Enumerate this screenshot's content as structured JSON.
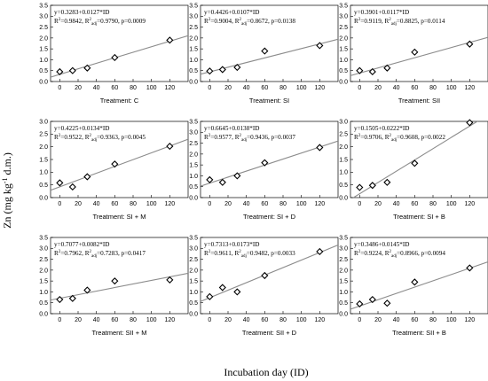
{
  "figure": {
    "ylabel_main": "Zn (mg kg",
    "ylabel_sup": "-1",
    "ylabel_tail": " d.m.)",
    "xlabel": "Incubation day (ID)"
  },
  "chart_data": [
    {
      "type": "scatter",
      "treatment": "Treatment: C",
      "eq": "y=0.3283+0.0127*ID",
      "r2": "=0.9842, R",
      "r2adj": "=0.9790, p=0.0009",
      "x": [
        0,
        14,
        30,
        60,
        120
      ],
      "y": [
        0.45,
        0.5,
        0.62,
        1.1,
        1.9
      ],
      "fit": {
        "intercept": 0.3283,
        "slope": 0.0127
      },
      "xticks": [
        "0",
        "20",
        "40",
        "60",
        "80",
        "100",
        "120"
      ],
      "yticks": [
        "0.0",
        "0.5",
        "1.0",
        "1.5",
        "2.0",
        "2.5",
        "3.0",
        "3.5"
      ],
      "xlim": [
        -10,
        140
      ],
      "ylim": [
        0,
        3.5
      ]
    },
    {
      "type": "scatter",
      "treatment": "Treatment: SI",
      "eq": "y=0.4426+0.0107*ID",
      "r2": "=0.9004, R",
      "r2adj": "=0.8672, p=0.0138",
      "x": [
        0,
        14,
        30,
        60,
        120
      ],
      "y": [
        0.48,
        0.55,
        0.65,
        1.4,
        1.65
      ],
      "fit": {
        "intercept": 0.4426,
        "slope": 0.0107
      },
      "xticks": [
        "0",
        "20",
        "40",
        "60",
        "80",
        "100",
        "120"
      ],
      "yticks": [
        "0.0",
        "0.5",
        "1.0",
        "1.5",
        "2.0",
        "2.5",
        "3.0",
        "3.5"
      ],
      "xlim": [
        -10,
        140
      ],
      "ylim": [
        0,
        3.5
      ]
    },
    {
      "type": "scatter",
      "treatment": "Treatment: SII",
      "eq": "y=0.3901+0.0117*ID",
      "r2": "=0.9119, R",
      "r2adj": "=0.8825, p=0.0114",
      "x": [
        0,
        14,
        30,
        60,
        120
      ],
      "y": [
        0.5,
        0.45,
        0.62,
        1.35,
        1.72
      ],
      "fit": {
        "intercept": 0.3901,
        "slope": 0.0117
      },
      "xticks": [
        "0",
        "20",
        "40",
        "60",
        "80",
        "100",
        "120"
      ],
      "yticks": [
        "0.0",
        "0.5",
        "1.0",
        "1.5",
        "2.0",
        "2.5",
        "3.0",
        "3.5"
      ],
      "xlim": [
        -10,
        140
      ],
      "ylim": [
        0,
        3.5
      ]
    },
    {
      "type": "scatter",
      "treatment": "Treatment: SI + M",
      "eq": "y=0.4225+0.0134*ID",
      "r2": "=0.9522, R",
      "r2adj": "=0.9363, p=0.0045",
      "x": [
        0,
        14,
        30,
        60,
        120
      ],
      "y": [
        0.58,
        0.42,
        0.82,
        1.32,
        2.02
      ],
      "fit": {
        "intercept": 0.4225,
        "slope": 0.0134
      },
      "xticks": [
        "0",
        "20",
        "40",
        "60",
        "80",
        "100",
        "120"
      ],
      "yticks": [
        "0.0",
        "0.5",
        "1.0",
        "1.5",
        "2.0",
        "2.5",
        "3.0"
      ],
      "xlim": [
        -10,
        140
      ],
      "ylim": [
        0,
        3.0
      ]
    },
    {
      "type": "scatter",
      "treatment": "Treatment: SI + D",
      "eq": "y=0.6645+0.0138*ID",
      "r2": "=0.9577, R",
      "r2adj": "=0.9436, p=0.0037",
      "x": [
        0,
        14,
        30,
        60,
        120
      ],
      "y": [
        0.82,
        0.7,
        1.0,
        1.6,
        2.3
      ],
      "fit": {
        "intercept": 0.6645,
        "slope": 0.0138
      },
      "xticks": [
        "0",
        "20",
        "40",
        "60",
        "80",
        "100",
        "120"
      ],
      "yticks": [
        "0.0",
        "0.5",
        "1.0",
        "1.5",
        "2.0",
        "2.5",
        "3.0",
        "3.5"
      ],
      "xlim": [
        -10,
        140
      ],
      "ylim": [
        0,
        3.5
      ]
    },
    {
      "type": "scatter",
      "treatment": "Treatment: SI + B",
      "eq": "y=0.1505+0.0222*ID",
      "r2": "=0.9706, R",
      "r2adj": "=0.9608, p=0.0022",
      "x": [
        0,
        14,
        30,
        60,
        120
      ],
      "y": [
        0.4,
        0.48,
        0.6,
        1.35,
        2.95
      ],
      "fit": {
        "intercept": 0.1505,
        "slope": 0.0222
      },
      "xticks": [
        "0",
        "20",
        "40",
        "60",
        "80",
        "100",
        "120"
      ],
      "yticks": [
        "0.0",
        "0.5",
        "1.0",
        "1.5",
        "2.0",
        "2.5",
        "3.0"
      ],
      "xlim": [
        -10,
        140
      ],
      "ylim": [
        0,
        3.0
      ]
    },
    {
      "type": "scatter",
      "treatment": "Treatment: SII + M",
      "eq": "y=0.7077+0.0082*ID",
      "r2": "=0.7962, R",
      "r2adj": "=0.7283, p=0.0417",
      "x": [
        0,
        14,
        30,
        60,
        120
      ],
      "y": [
        0.65,
        0.7,
        1.08,
        1.5,
        1.55
      ],
      "fit": {
        "intercept": 0.7077,
        "slope": 0.0082
      },
      "xticks": [
        "0",
        "20",
        "40",
        "60",
        "80",
        "100",
        "120"
      ],
      "yticks": [
        "0.0",
        "0.5",
        "1.0",
        "1.5",
        "2.0",
        "2.5",
        "3.0",
        "3.5"
      ],
      "xlim": [
        -10,
        140
      ],
      "ylim": [
        0,
        3.5
      ]
    },
    {
      "type": "scatter",
      "treatment": "Treatment: SII + D",
      "eq": "y=0.7313+0.0173*ID",
      "r2": "=0.9611, R",
      "r2adj": "=0.9482, p=0.0033",
      "x": [
        0,
        14,
        30,
        60,
        120
      ],
      "y": [
        0.78,
        1.2,
        1.0,
        1.75,
        2.85
      ],
      "fit": {
        "intercept": 0.7313,
        "slope": 0.0173
      },
      "xticks": [
        "0",
        "20",
        "40",
        "60",
        "80",
        "100",
        "120"
      ],
      "yticks": [
        "0.0",
        "0.5",
        "1.0",
        "1.5",
        "2.0",
        "2.5",
        "3.0",
        "3.5"
      ],
      "xlim": [
        -10,
        140
      ],
      "ylim": [
        0,
        3.5
      ]
    },
    {
      "type": "scatter",
      "treatment": "Treatment: SII + B",
      "eq": "y=0.3486+0.0145*ID",
      "r2": "=0.9224, R",
      "r2adj": "=0.8966, p=0.0094",
      "x": [
        0,
        14,
        30,
        60,
        120
      ],
      "y": [
        0.45,
        0.65,
        0.48,
        1.45,
        2.1
      ],
      "fit": {
        "intercept": 0.3486,
        "slope": 0.0145
      },
      "xticks": [
        "0",
        "20",
        "40",
        "60",
        "80",
        "100",
        "120"
      ],
      "yticks": [
        "0.0",
        "0.5",
        "1.0",
        "1.5",
        "2.0",
        "2.5",
        "3.0",
        "3.5"
      ],
      "xlim": [
        -10,
        140
      ],
      "ylim": [
        0,
        3.5
      ]
    }
  ]
}
